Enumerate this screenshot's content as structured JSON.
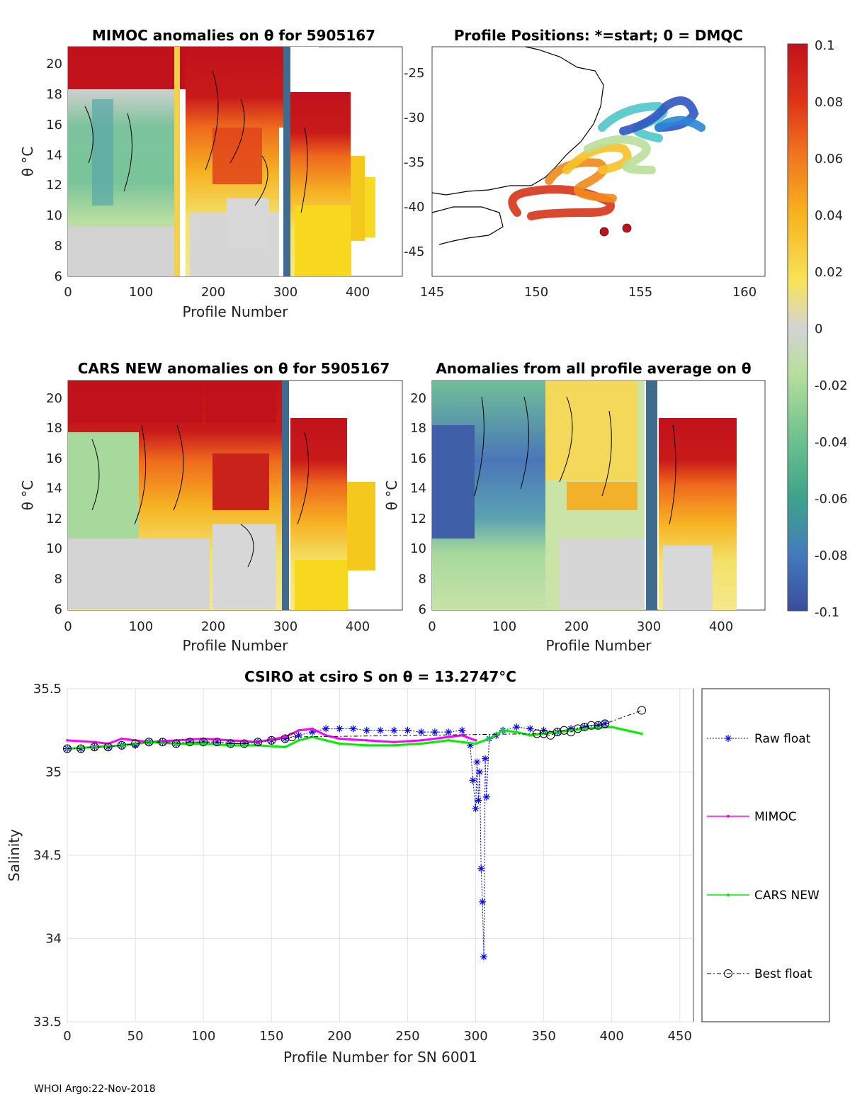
{
  "footer": "WHOI Argo:22-Nov-2018",
  "colorbar": {
    "ticks": [
      "0.1",
      "0.08",
      "0.06",
      "0.04",
      "0.02",
      "0",
      "-0.02",
      "-0.04",
      "-0.06",
      "-0.08",
      "-0.1"
    ],
    "range": [
      -0.1,
      0.1
    ],
    "colors": [
      "#3d4a9e",
      "#4a76b8",
      "#5ba3b1",
      "#6fbf98",
      "#a6d89b",
      "#d4d4d4",
      "#f5e88a",
      "#f9c91d",
      "#f59a1c",
      "#e8581a",
      "#c1121c"
    ]
  },
  "panels": {
    "mimoc": {
      "title": "MIMOC anomalies on θ  for 5905167",
      "xlabel": "Profile Number",
      "ylabel": "θ °C",
      "xticks": [
        "0",
        "100",
        "200",
        "300",
        "400"
      ],
      "yticks": [
        "6",
        "8",
        "10",
        "12",
        "14",
        "16",
        "18",
        "20"
      ]
    },
    "map": {
      "title": "Profile Positions: *=start; 0 = DMQC",
      "xticks": [
        "145",
        "150",
        "155",
        "160"
      ],
      "yticks": [
        "-25",
        "-30",
        "-35",
        "-40",
        "-45"
      ]
    },
    "cars": {
      "title": "CARS NEW anomalies on θ for 5905167",
      "xlabel": "Profile Number",
      "ylabel": "θ °C",
      "xticks": [
        "0",
        "100",
        "200",
        "300",
        "400"
      ],
      "yticks": [
        "6",
        "8",
        "10",
        "12",
        "14",
        "16",
        "18",
        "20"
      ]
    },
    "avg": {
      "title": "Anomalies from all profile average on θ",
      "xlabel": "Profile Number",
      "ylabel": "θ °C",
      "xticks": [
        "0",
        "100",
        "200",
        "300",
        "400"
      ],
      "yticks": [
        "6",
        "8",
        "10",
        "12",
        "14",
        "16",
        "18",
        "20"
      ]
    }
  },
  "chart_data": {
    "type": "line",
    "title": "CSIRO at csiro S on θ = 13.2747°C",
    "xlabel": "Profile Number for SN 6001",
    "ylabel": "Salinity",
    "xlim": [
      0,
      460
    ],
    "ylim": [
      33.5,
      35.5
    ],
    "xticks": [
      "0",
      "50",
      "100",
      "150",
      "200",
      "250",
      "300",
      "350",
      "400",
      "450"
    ],
    "yticks": [
      "33.5",
      "34",
      "34.5",
      "35",
      "35.5"
    ],
    "legend": [
      "Raw float",
      "MIMOC",
      "CARS NEW",
      "Best float"
    ],
    "series": [
      {
        "name": "Raw float",
        "color": "#0000ff",
        "x": [
          0,
          10,
          20,
          30,
          40,
          50,
          60,
          70,
          80,
          90,
          100,
          110,
          120,
          130,
          140,
          150,
          160,
          170,
          180,
          190,
          200,
          210,
          220,
          230,
          240,
          250,
          260,
          270,
          280,
          290,
          296,
          298,
          300,
          301,
          302,
          303,
          304,
          305,
          306,
          307,
          308,
          310,
          315,
          320,
          330,
          340,
          350,
          360,
          370,
          380,
          390,
          395
        ],
        "y": [
          35.14,
          35.14,
          35.15,
          35.15,
          35.16,
          35.16,
          35.18,
          35.18,
          35.17,
          35.18,
          35.18,
          35.18,
          35.17,
          35.17,
          35.18,
          35.19,
          35.2,
          35.22,
          35.24,
          35.26,
          35.26,
          35.26,
          35.25,
          35.25,
          35.25,
          35.25,
          35.24,
          35.24,
          35.24,
          35.25,
          35.16,
          34.95,
          34.78,
          35.06,
          34.83,
          35.0,
          34.42,
          34.22,
          33.89,
          35.08,
          34.85,
          35.2,
          35.22,
          35.25,
          35.27,
          35.26,
          35.25,
          35.24,
          35.26,
          35.27,
          35.28,
          35.29
        ]
      },
      {
        "name": "MIMOC",
        "color": "#ff00ff",
        "x": [
          0,
          20,
          30,
          40,
          50,
          60,
          80,
          100,
          120,
          140,
          160,
          170,
          180,
          190,
          200,
          220,
          240,
          260,
          280,
          290,
          300
        ],
        "y": [
          35.19,
          35.18,
          35.17,
          35.2,
          35.19,
          35.18,
          35.19,
          35.2,
          35.19,
          35.18,
          35.21,
          35.25,
          35.26,
          35.22,
          35.2,
          35.19,
          35.18,
          35.19,
          35.21,
          35.22,
          35.19
        ]
      },
      {
        "name": "CARS NEW",
        "color": "#00ee00",
        "x": [
          0,
          20,
          40,
          60,
          80,
          100,
          120,
          140,
          160,
          170,
          180,
          190,
          200,
          220,
          240,
          260,
          280,
          290,
          300,
          310,
          320,
          330,
          340,
          360,
          380,
          400,
          422
        ],
        "y": [
          35.14,
          35.15,
          35.16,
          35.18,
          35.17,
          35.17,
          35.16,
          35.16,
          35.15,
          35.19,
          35.21,
          35.19,
          35.17,
          35.16,
          35.16,
          35.17,
          35.19,
          35.18,
          35.17,
          35.2,
          35.25,
          35.24,
          35.22,
          35.24,
          35.26,
          35.27,
          35.23
        ]
      },
      {
        "name": "Best float",
        "color": "#000000",
        "x": [
          0,
          10,
          20,
          30,
          40,
          50,
          60,
          70,
          80,
          90,
          100,
          110,
          120,
          130,
          140,
          150,
          160,
          165,
          345,
          350,
          355,
          360,
          365,
          370,
          375,
          380,
          385,
          390,
          395,
          422
        ],
        "y": [
          35.14,
          35.14,
          35.15,
          35.15,
          35.16,
          35.17,
          35.18,
          35.18,
          35.17,
          35.18,
          35.18,
          35.18,
          35.17,
          35.17,
          35.18,
          35.19,
          35.2,
          35.21,
          35.23,
          35.23,
          35.22,
          35.24,
          35.25,
          35.24,
          35.26,
          35.27,
          35.28,
          35.28,
          35.29,
          35.37
        ]
      }
    ]
  }
}
